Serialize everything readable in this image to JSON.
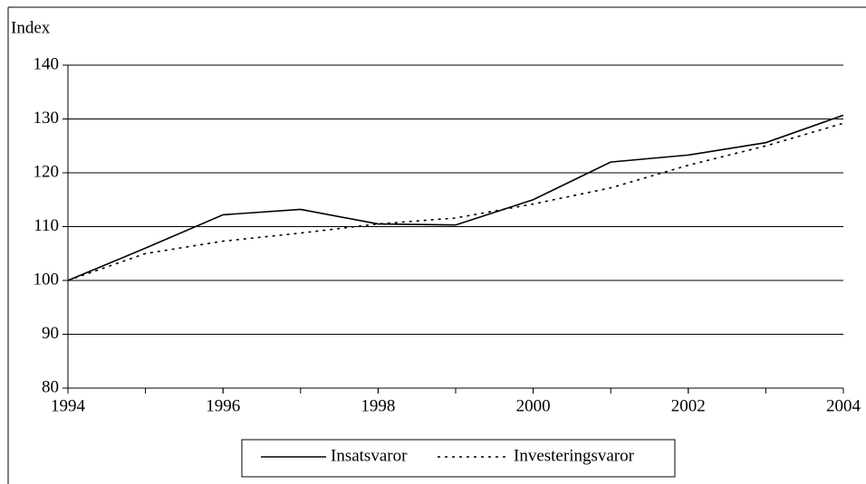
{
  "chart_data": {
    "type": "line",
    "y_label": "Index",
    "x": [
      1994,
      1995,
      1996,
      1997,
      1998,
      1999,
      2000,
      2001,
      2002,
      2003,
      2004
    ],
    "series": [
      {
        "name": "Insatsvaror",
        "color": "#000000",
        "dash": "solid",
        "values": [
          100,
          106,
          112.2,
          113.2,
          110.5,
          110.3,
          115,
          122,
          123.3,
          125.6,
          130.7
        ]
      },
      {
        "name": "Investeringsvaror",
        "color": "#000000",
        "dash": "dotted",
        "values": [
          100,
          105,
          107.3,
          108.8,
          110.5,
          111.6,
          114.2,
          117.2,
          121.4,
          125,
          129.2
        ]
      }
    ],
    "xlim": [
      1994,
      2004
    ],
    "xticks": [
      1994,
      1996,
      1998,
      2000,
      2002,
      2004
    ],
    "ylim": [
      80,
      140
    ],
    "yticks": [
      80,
      90,
      100,
      110,
      120,
      130,
      140
    ],
    "grid": true,
    "legend": "bottom"
  }
}
